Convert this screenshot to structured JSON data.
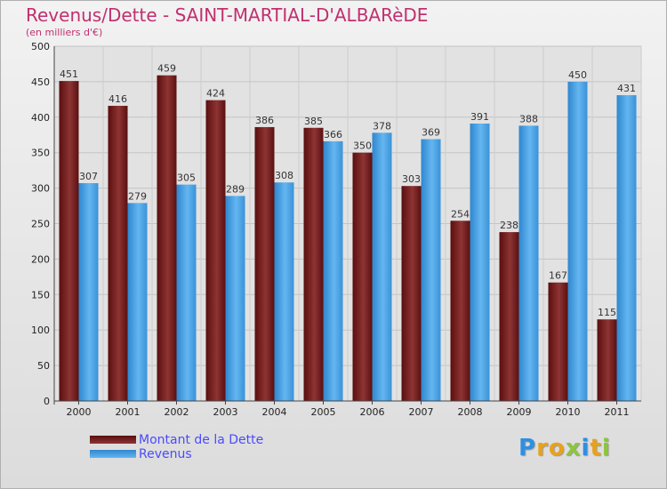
{
  "header": {
    "title": "Revenus/Dette - SAINT-MARTIAL-D'ALBARèDE",
    "subtitle": "(en milliers d'€)"
  },
  "chart_data": {
    "type": "bar",
    "categories": [
      "2000",
      "2001",
      "2002",
      "2003",
      "2004",
      "2005",
      "2006",
      "2007",
      "2008",
      "2009",
      "2010",
      "2011"
    ],
    "series": [
      {
        "name": "Montant de la Dette",
        "color": "#7a2020",
        "values": [
          451,
          416,
          459,
          424,
          386,
          385,
          350,
          303,
          254,
          238,
          167,
          115
        ]
      },
      {
        "name": "Revenus",
        "color": "#4aa3e6",
        "values": [
          307,
          279,
          305,
          289,
          308,
          366,
          378,
          369,
          391,
          388,
          450,
          431
        ]
      }
    ],
    "ylim": [
      0,
      500
    ],
    "yticks": [
      0,
      50,
      100,
      150,
      200,
      250,
      300,
      350,
      400,
      450,
      500
    ],
    "grid": true,
    "legend": "bottom-left"
  },
  "legend": {
    "items": [
      {
        "label": "Montant de la Dette",
        "color": "#7a2020"
      },
      {
        "label": "Revenus",
        "color": "#4aa3e6"
      }
    ]
  },
  "logo": {
    "letters": [
      "P",
      "r",
      "o",
      "x",
      "i",
      "t",
      "i"
    ]
  }
}
